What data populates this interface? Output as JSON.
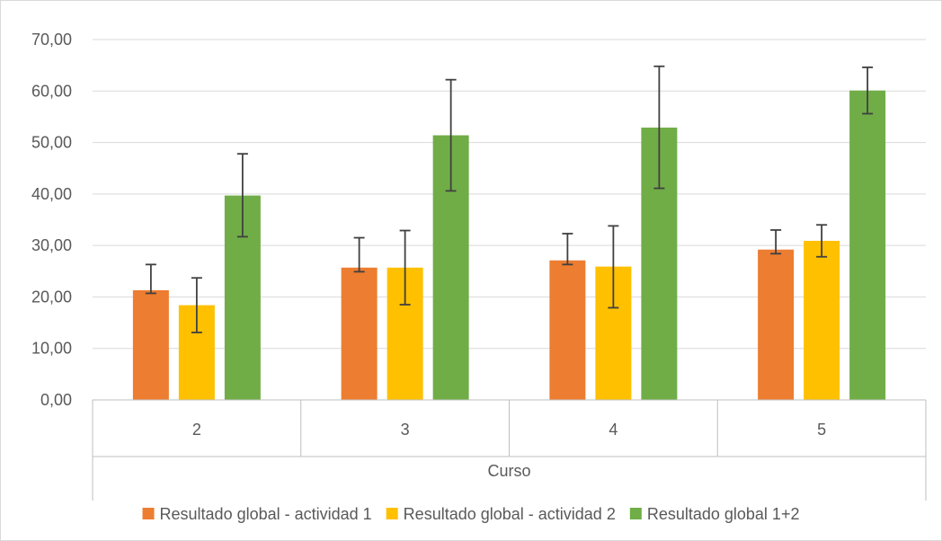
{
  "chart_data": {
    "type": "bar",
    "categories": [
      "2",
      "3",
      "4",
      "5"
    ],
    "xlabel": "Curso",
    "ylabel": "",
    "ylim": [
      0,
      70
    ],
    "yticks": [
      "0,00",
      "10,00",
      "20,00",
      "30,00",
      "40,00",
      "50,00",
      "60,00",
      "70,00"
    ],
    "grid": true,
    "legend_position": "bottom",
    "series": [
      {
        "name": "Resultado global - actividad 1",
        "color": "#ed7d31",
        "values": [
          21.3,
          25.7,
          27.1,
          29.2
        ],
        "error_low": [
          20.7,
          24.9,
          26.3,
          28.4
        ],
        "error_high": [
          26.3,
          31.5,
          32.3,
          33.0
        ]
      },
      {
        "name": "Resultado global - actividad 2",
        "color": "#ffc000",
        "values": [
          18.4,
          25.7,
          25.9,
          30.9
        ],
        "error_low": [
          13.1,
          18.5,
          17.9,
          27.8
        ],
        "error_high": [
          23.7,
          32.9,
          33.8,
          34.0
        ]
      },
      {
        "name": "Resultado global 1+2",
        "color": "#70ad47",
        "values": [
          39.7,
          51.4,
          52.9,
          60.1
        ],
        "error_low": [
          31.7,
          40.6,
          41.1,
          55.6
        ],
        "error_high": [
          47.8,
          62.2,
          64.8,
          64.6
        ]
      }
    ]
  }
}
